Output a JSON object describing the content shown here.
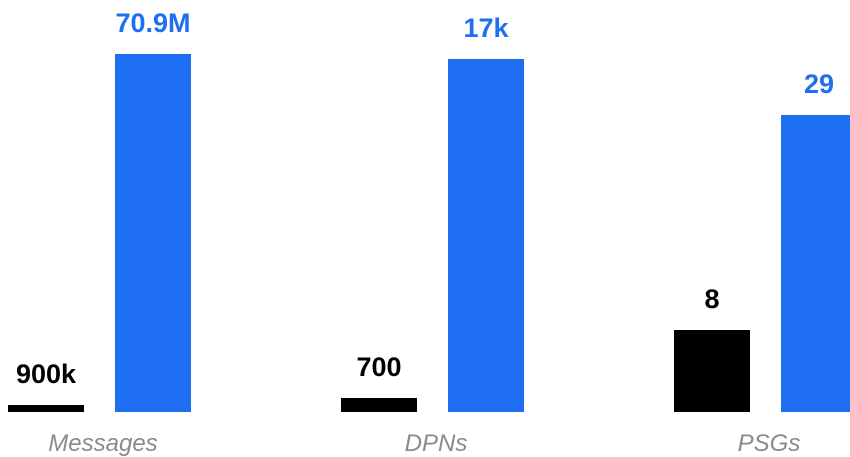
{
  "colors": {
    "series_a": "#000000",
    "series_b": "#1f6ff2",
    "category_text": "#8a8a8a",
    "background": "#ffffff"
  },
  "chart_data": {
    "type": "bar",
    "categories": [
      "Messages",
      "DPNs",
      "PSGs"
    ],
    "series": [
      {
        "values": [
          900000,
          700,
          8
        ],
        "labels": [
          "900k",
          "700",
          "8"
        ],
        "bar_fraction": [
          0.02,
          0.04,
          0.23
        ],
        "color": "#000000"
      },
      {
        "values": [
          70900000,
          17000,
          29
        ],
        "labels": [
          "70.9M",
          "17k",
          "29"
        ],
        "bar_fraction": [
          1.0,
          0.985,
          0.829
        ],
        "color": "#1f6ff2"
      }
    ],
    "title": "",
    "xlabel": "",
    "ylabel": "",
    "scale_note_independent_per_category": true,
    "grid": false,
    "legend": "none"
  }
}
